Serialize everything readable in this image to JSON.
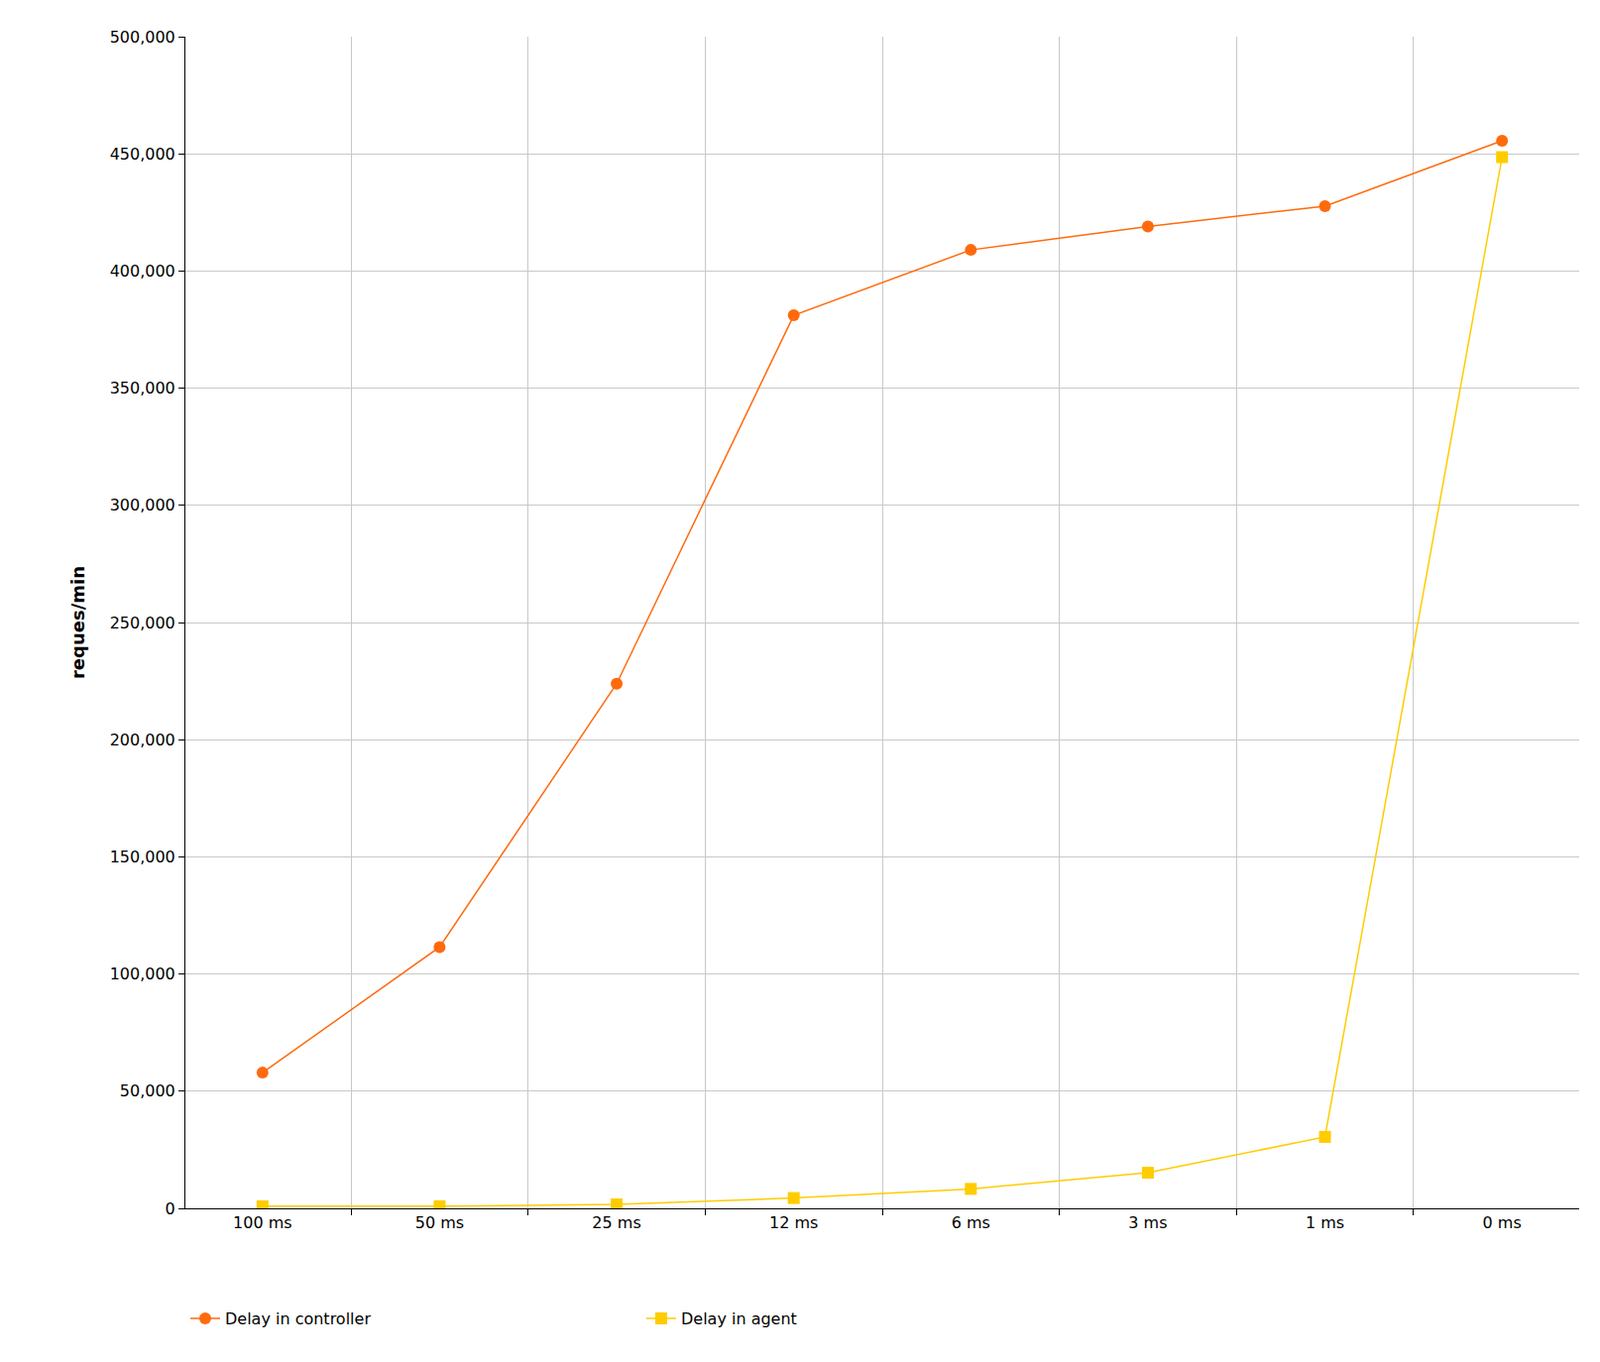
{
  "chart_data": {
    "type": "line",
    "y_label": "reques/min",
    "categories": [
      "100 ms",
      "50 ms",
      "25 ms",
      "12 ms",
      "6 ms",
      "3 ms",
      "1 ms",
      "0 ms"
    ],
    "series": [
      {
        "name": "Delay in controller",
        "color": "#ff6a0d",
        "marker": "circle",
        "values": [
          57900,
          111500,
          223900,
          381100,
          409000,
          419000,
          427700,
          455600
        ]
      },
      {
        "name": "Delay in agent",
        "color": "#ffcc00",
        "marker": "square",
        "values": [
          900,
          900,
          1700,
          4400,
          8300,
          15200,
          30500,
          448600
        ]
      }
    ],
    "ylim": [
      0,
      500000
    ],
    "yticks": [
      0,
      {
        "value": 50000,
        "label": "50,000"
      },
      {
        "value": 100000,
        "label": "100,000"
      },
      {
        "value": 150000,
        "label": "150,000"
      },
      {
        "value": 200000,
        "label": "200,000"
      },
      {
        "value": 250000,
        "label": "250,000"
      },
      {
        "value": 300000,
        "label": "300,000"
      },
      {
        "value": 350000,
        "label": "350,000"
      },
      {
        "value": 400000,
        "label": "400,000"
      },
      {
        "value": 450000,
        "label": "450,000"
      },
      {
        "value": 500000,
        "label": "500,000"
      }
    ],
    "grid": true,
    "legend": "bottom left"
  }
}
